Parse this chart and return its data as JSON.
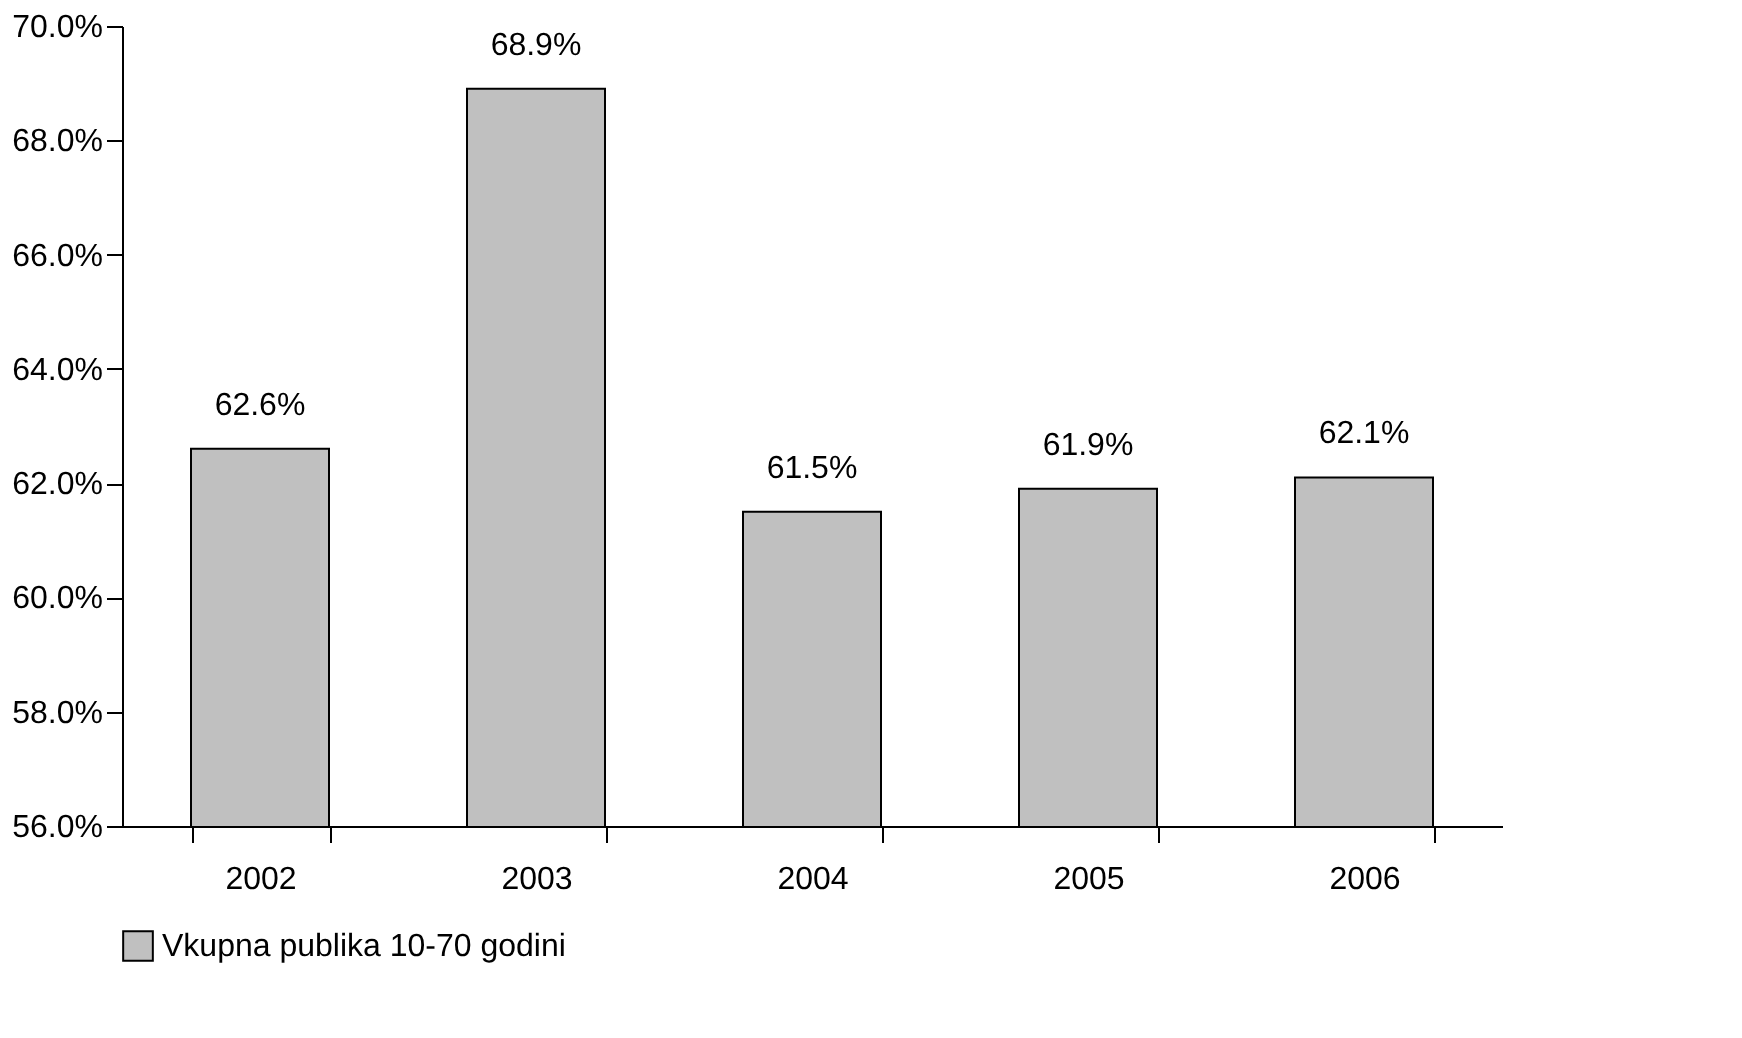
{
  "chart_data": {
    "type": "bar",
    "categories": [
      "2002",
      "2003",
      "2004",
      "2005",
      "2006"
    ],
    "series": [
      {
        "name": "Vkupna publika 10-70 godini",
        "color": "#c0c0c0",
        "values": [
          62.6,
          68.9,
          61.5,
          61.9,
          62.1
        ],
        "value_labels": [
          "62.6%",
          "68.9%",
          "61.5%",
          "61.9%",
          "62.1%"
        ]
      }
    ],
    "ylim": [
      56,
      70
    ],
    "yticks": [
      {
        "value": 56,
        "label": "56.0%"
      },
      {
        "value": 58,
        "label": "58.0%"
      },
      {
        "value": 60,
        "label": "60.0%"
      },
      {
        "value": 62,
        "label": "62.0%"
      },
      {
        "value": 64,
        "label": "64.0%"
      },
      {
        "value": 66,
        "label": "66.0%"
      },
      {
        "value": 68,
        "label": "68.0%"
      },
      {
        "value": 70,
        "label": "70.0%"
      }
    ],
    "grid": false,
    "legend": "bottom"
  }
}
